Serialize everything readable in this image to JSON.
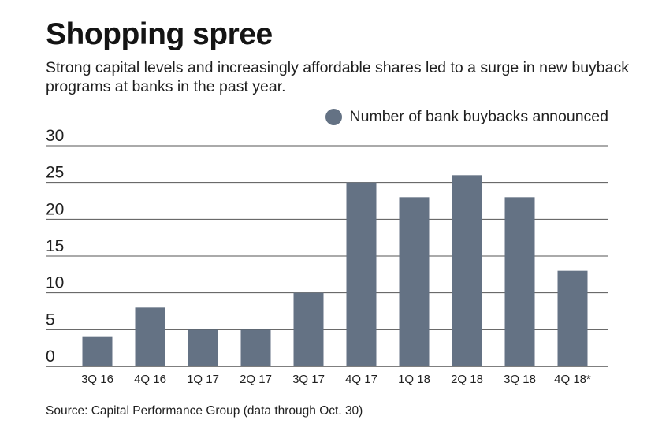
{
  "title": "Shopping spree",
  "subtitle": "Strong capital levels and increasingly affordable shares led to a surge in new buyback programs at banks in the past year.",
  "source": "Source: Capital Performance Group (data through Oct. 30)",
  "colors": {
    "bar": "#647284",
    "grid": "#555555",
    "text": "#1f1f1f"
  },
  "chart_data": {
    "type": "bar",
    "title": "Shopping spree",
    "xlabel": "",
    "ylabel": "",
    "ylim": [
      0,
      30
    ],
    "yticks": [
      0,
      5,
      10,
      15,
      20,
      25,
      30
    ],
    "grid": true,
    "legend": {
      "position": "top-right",
      "entries": [
        "Number of bank buybacks announced"
      ]
    },
    "categories": [
      "3Q 16",
      "4Q 16",
      "1Q 17",
      "2Q 17",
      "3Q 17",
      "4Q 17",
      "1Q 18",
      "2Q 18",
      "3Q 18",
      "4Q 18*"
    ],
    "series": [
      {
        "name": "Number of bank buybacks announced",
        "values": [
          4,
          8,
          5,
          5,
          10,
          25,
          23,
          26,
          23,
          13
        ]
      }
    ]
  }
}
